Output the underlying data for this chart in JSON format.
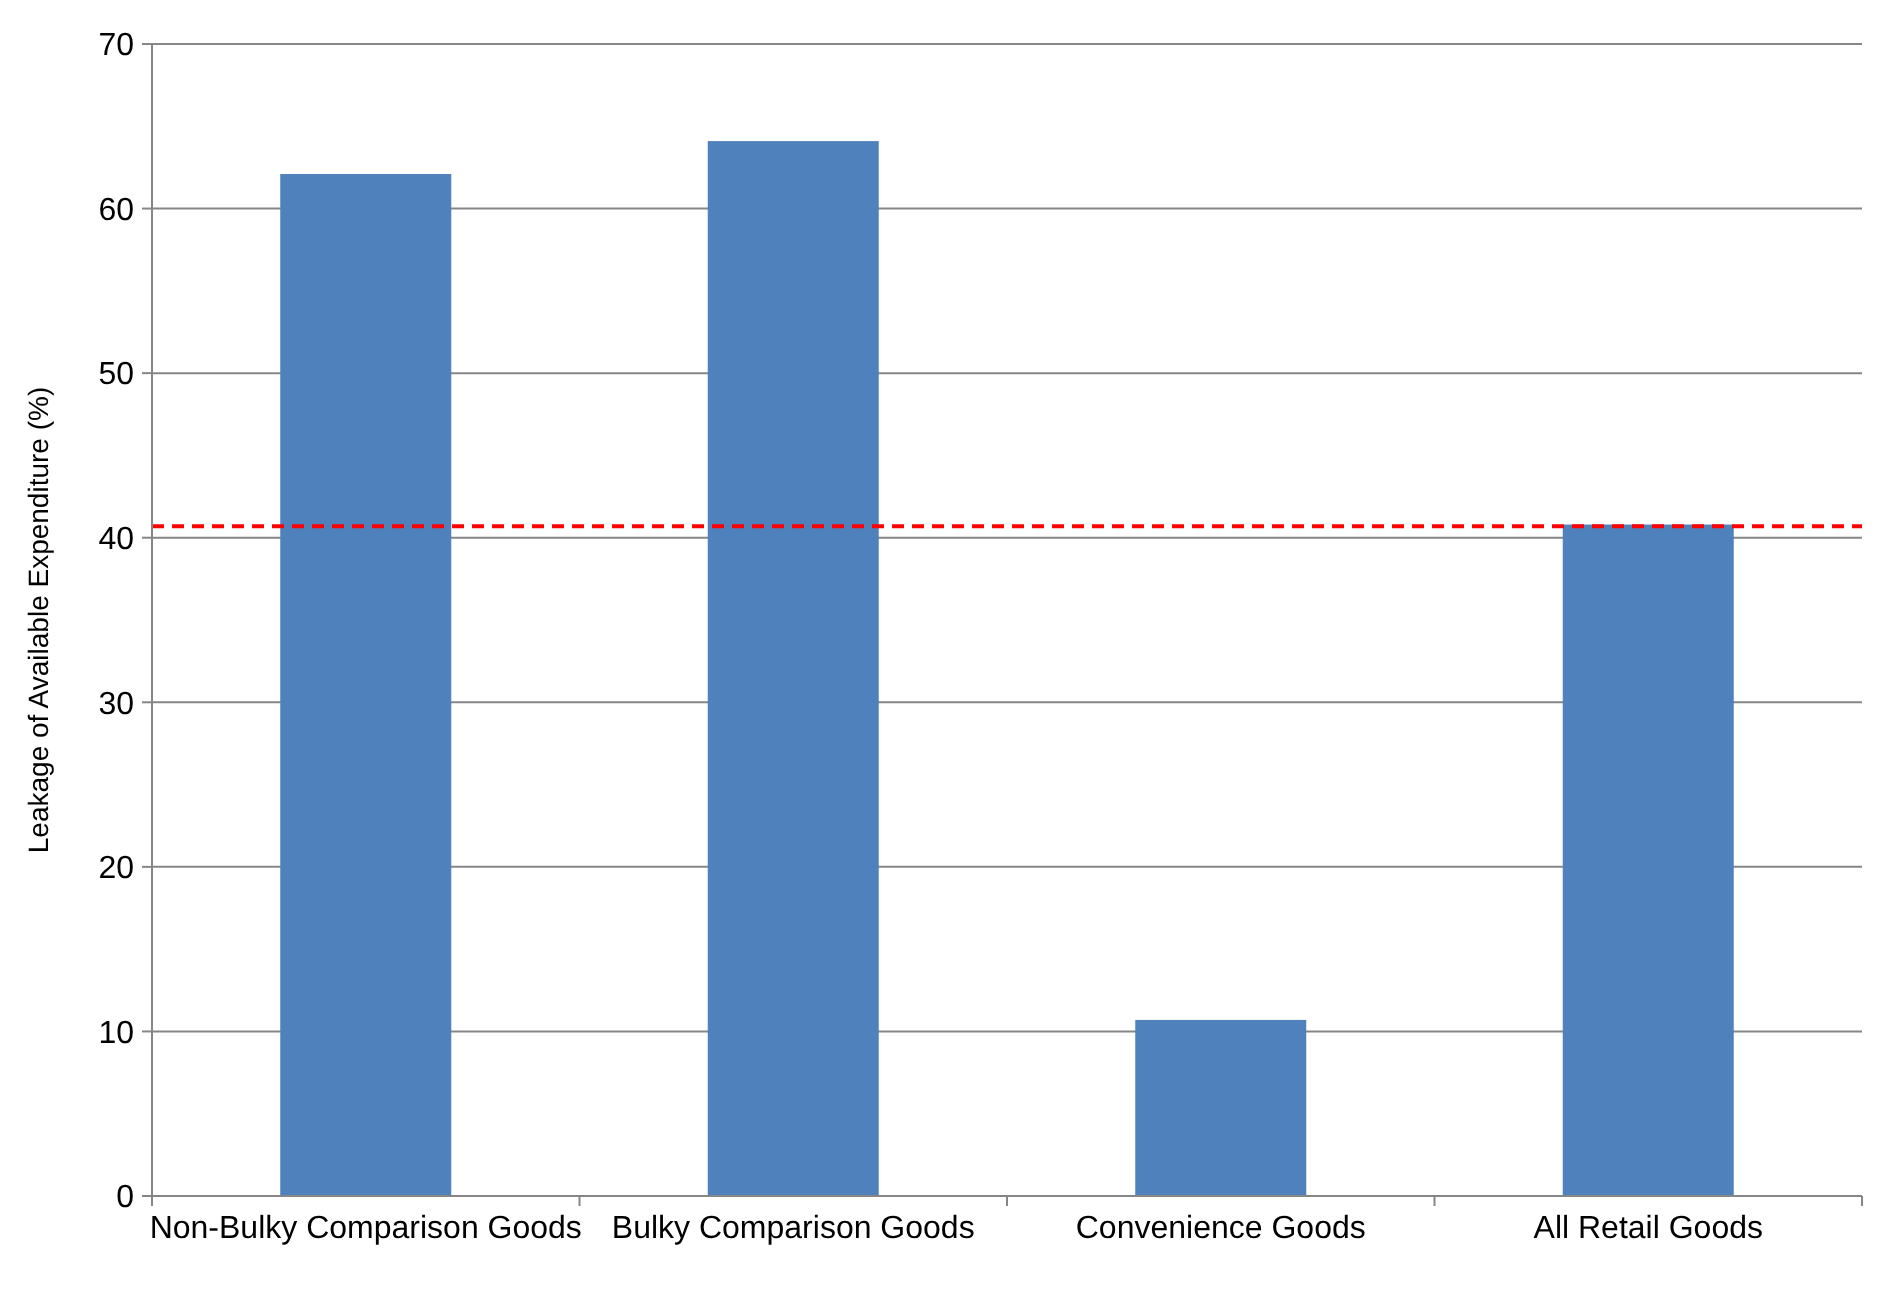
{
  "chart_data": {
    "type": "bar",
    "ylabel": "Leakage of Available Expenditure (%)",
    "categories": [
      "Non-Bulky Comparison Goods",
      "Bulky Comparison Goods",
      "Convenience Goods",
      "All Retail Goods"
    ],
    "values": [
      62.1,
      64.1,
      10.7,
      40.8
    ],
    "color": "#4f81bd",
    "ylim": [
      0,
      70
    ],
    "yticks": [
      0,
      10,
      20,
      30,
      40,
      50,
      60,
      70
    ],
    "grid": "y",
    "ref_lines": [
      {
        "axis": "y",
        "value": 40.7,
        "color": "#ff0000",
        "line_style": "dashed"
      }
    ]
  }
}
